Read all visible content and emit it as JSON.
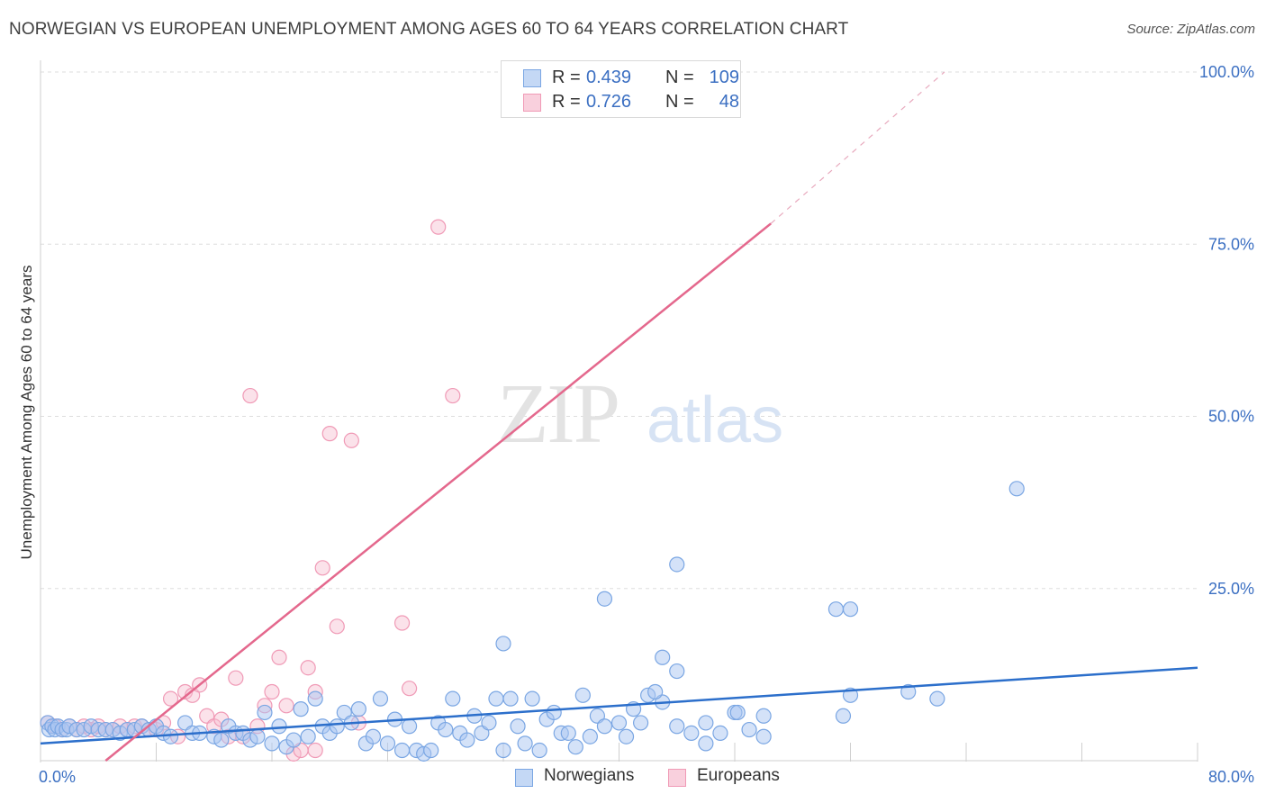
{
  "title": "NORWEGIAN VS EUROPEAN UNEMPLOYMENT AMONG AGES 60 TO 64 YEARS CORRELATION CHART",
  "source": "Source: ZipAtlas.com",
  "watermark": {
    "zip": "ZIP",
    "atlas": "atlas"
  },
  "legend": {
    "rows": [
      {
        "r_label": "R =",
        "r_value": "0.439",
        "n_label": "N =",
        "n_value": "109"
      },
      {
        "r_label": "R =",
        "r_value": "0.726",
        "n_label": "N =",
        "n_value": "48"
      }
    ]
  },
  "bottom_legend": {
    "norwegians": "Norwegians",
    "europeans": "Europeans"
  },
  "colors": {
    "norwegians_fill": "#a9c6f2",
    "norwegians_stroke": "#7aa6e3",
    "norwegians_line": "#2c6fcb",
    "europeans_fill": "#f6bfd0",
    "europeans_stroke": "#f09ab6",
    "europeans_line": "#e4688d",
    "tick_label": "#3b6fc2",
    "grid": "#dedede"
  },
  "chart_data": {
    "type": "scatter",
    "title": "NORWEGIAN VS EUROPEAN UNEMPLOYMENT AMONG AGES 60 TO 64 YEARS CORRELATION CHART",
    "xlabel": "",
    "ylabel": "Unemployment Among Ages 60 to 64 years",
    "xlim": [
      0,
      80
    ],
    "ylim": [
      0,
      100
    ],
    "x_tick_labels": [
      "0.0%",
      "80.0%"
    ],
    "y_tick_labels": [
      "25.0%",
      "50.0%",
      "75.0%",
      "100.0%"
    ],
    "y_ticks": [
      25,
      50,
      75,
      100
    ],
    "x_minor_ticks": [
      0,
      8,
      16,
      24,
      32,
      40,
      48,
      56,
      64,
      72,
      80
    ],
    "grid": true,
    "legend_position": "top-center",
    "series": [
      {
        "name": "Norwegians",
        "r": 0.439,
        "n": 109,
        "trend": {
          "x0": 0,
          "y0": 2.5,
          "x1": 80,
          "y1": 13.5
        },
        "points": [
          [
            0.5,
            5.5
          ],
          [
            0.6,
            4.5
          ],
          [
            0.8,
            5
          ],
          [
            1,
            4.5
          ],
          [
            1.2,
            5
          ],
          [
            1.5,
            4.5
          ],
          [
            1.8,
            4.5
          ],
          [
            2,
            5
          ],
          [
            2.5,
            4.5
          ],
          [
            3,
            4.5
          ],
          [
            3.5,
            5
          ],
          [
            4,
            4.5
          ],
          [
            4.5,
            4.5
          ],
          [
            5,
            4.5
          ],
          [
            5.5,
            4
          ],
          [
            6,
            4.5
          ],
          [
            6.5,
            4.5
          ],
          [
            7,
            5
          ],
          [
            7.5,
            4.5
          ],
          [
            8,
            5
          ],
          [
            8.5,
            4
          ],
          [
            9,
            3.5
          ],
          [
            10,
            5.5
          ],
          [
            10.5,
            4
          ],
          [
            11,
            4
          ],
          [
            12,
            3.5
          ],
          [
            12.5,
            3
          ],
          [
            13,
            5
          ],
          [
            13.5,
            4
          ],
          [
            14,
            4
          ],
          [
            14.5,
            3
          ],
          [
            15,
            3.5
          ],
          [
            15.5,
            7
          ],
          [
            16,
            2.5
          ],
          [
            16.5,
            5
          ],
          [
            17,
            2
          ],
          [
            17.5,
            3
          ],
          [
            18,
            7.5
          ],
          [
            18.5,
            3.5
          ],
          [
            19,
            9
          ],
          [
            19.5,
            5
          ],
          [
            20,
            4
          ],
          [
            20.5,
            5
          ],
          [
            21,
            7
          ],
          [
            21.5,
            5.5
          ],
          [
            22,
            7.5
          ],
          [
            22.5,
            2.5
          ],
          [
            23,
            3.5
          ],
          [
            23.5,
            9
          ],
          [
            24,
            2.5
          ],
          [
            24.5,
            6
          ],
          [
            25,
            1.5
          ],
          [
            25.5,
            5
          ],
          [
            26,
            1.5
          ],
          [
            26.5,
            1
          ],
          [
            27,
            1.5
          ],
          [
            27.5,
            5.5
          ],
          [
            28,
            4.5
          ],
          [
            28.5,
            9
          ],
          [
            29,
            4
          ],
          [
            29.5,
            3
          ],
          [
            30,
            6.5
          ],
          [
            30.5,
            4
          ],
          [
            31,
            5.5
          ],
          [
            31.5,
            9
          ],
          [
            32,
            1.5
          ],
          [
            32.5,
            9
          ],
          [
            33,
            5
          ],
          [
            33.5,
            2.5
          ],
          [
            34,
            9
          ],
          [
            34.5,
            1.5
          ],
          [
            35,
            6
          ],
          [
            35.5,
            7
          ],
          [
            36,
            4
          ],
          [
            36.5,
            4
          ],
          [
            37,
            2
          ],
          [
            37.5,
            9.5
          ],
          [
            38,
            3.5
          ],
          [
            38.5,
            6.5
          ],
          [
            39,
            5
          ],
          [
            40,
            5.5
          ],
          [
            40.5,
            3.5
          ],
          [
            41,
            7.5
          ],
          [
            41.5,
            5.5
          ],
          [
            42,
            9.5
          ],
          [
            43,
            8.5
          ],
          [
            44,
            5
          ],
          [
            45,
            4
          ],
          [
            46,
            2.5
          ],
          [
            47,
            4
          ],
          [
            48,
            7
          ],
          [
            48.2,
            7
          ],
          [
            49,
            4.5
          ],
          [
            50,
            3.5
          ],
          [
            56,
            9.5
          ],
          [
            60,
            10
          ],
          [
            62,
            9
          ],
          [
            67.5,
            39.5
          ],
          [
            55,
            22
          ],
          [
            56,
            22
          ],
          [
            44,
            28.5
          ],
          [
            39,
            23.5
          ],
          [
            32,
            17
          ],
          [
            43,
            15
          ],
          [
            44,
            13
          ],
          [
            46,
            5.5
          ],
          [
            50,
            6.5
          ],
          [
            55.5,
            6.5
          ],
          [
            42.5,
            10
          ]
        ]
      },
      {
        "name": "Europeans",
        "r": 0.726,
        "n": 48,
        "trend": {
          "x0": 4.5,
          "y0": 0,
          "x1": 50.5,
          "y1": 78
        },
        "trend_dashed": {
          "x0": 50.5,
          "y0": 78,
          "x1": 62.5,
          "y1": 100
        },
        "points": [
          [
            0.5,
            5.5
          ],
          [
            1,
            5
          ],
          [
            1.5,
            4.5
          ],
          [
            2,
            5
          ],
          [
            2.5,
            4.5
          ],
          [
            3,
            5
          ],
          [
            3.5,
            4.5
          ],
          [
            4,
            5
          ],
          [
            4.5,
            4.5
          ],
          [
            5,
            4.5
          ],
          [
            5.5,
            5
          ],
          [
            6,
            4.5
          ],
          [
            6.5,
            5
          ],
          [
            7,
            5
          ],
          [
            7.5,
            4.5
          ],
          [
            8,
            4.5
          ],
          [
            8.5,
            5.5
          ],
          [
            9,
            9
          ],
          [
            9.5,
            3.5
          ],
          [
            10,
            10
          ],
          [
            10.5,
            9.5
          ],
          [
            11,
            11
          ],
          [
            11.5,
            6.5
          ],
          [
            12,
            5
          ],
          [
            12.5,
            6
          ],
          [
            13,
            3.5
          ],
          [
            13.5,
            12
          ],
          [
            14,
            3.5
          ],
          [
            14.5,
            53
          ],
          [
            15,
            5
          ],
          [
            15.5,
            8
          ],
          [
            16,
            10
          ],
          [
            16.5,
            15
          ],
          [
            17,
            8
          ],
          [
            17.5,
            1
          ],
          [
            18,
            1.5
          ],
          [
            18.5,
            13.5
          ],
          [
            19,
            10
          ],
          [
            19.5,
            28
          ],
          [
            20,
            47.5
          ],
          [
            20.5,
            19.5
          ],
          [
            21.5,
            46.5
          ],
          [
            22,
            5.5
          ],
          [
            25,
            20
          ],
          [
            25.5,
            10.5
          ],
          [
            27.5,
            77.5
          ],
          [
            28.5,
            53
          ],
          [
            19,
            1.5
          ]
        ]
      }
    ]
  }
}
